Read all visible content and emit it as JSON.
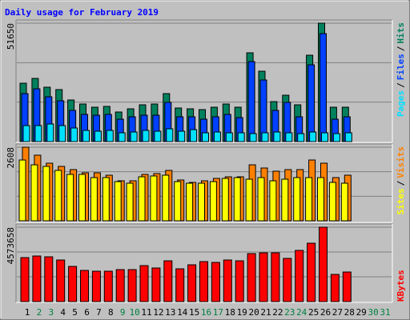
{
  "chart_data": [
    {
      "type": "bar",
      "title": "Daily usage for February 2019",
      "title_color": "#0000ff",
      "ylim": [
        0,
        51650
      ],
      "yticks": [
        51650
      ],
      "legend_separator": "/",
      "series": [
        {
          "name": "Hits",
          "color": "#00805c",
          "values": [
            25476,
            27570,
            23731,
            22684,
            18147,
            16402,
            15006,
            15355,
            12913,
            14309,
            16053,
            16402,
            20939,
            14657,
            14309,
            13959,
            15006,
            16402,
            15006,
            38738,
            30711,
            17449,
            20241,
            16053,
            37691,
            51650,
            15006,
            15006,
            0,
            0,
            0
          ]
        },
        {
          "name": "Files",
          "color": "#0040ff",
          "values": [
            20939,
            23033,
            19543,
            17798,
            13610,
            11866,
            11517,
            11866,
            9772,
            10819,
            11517,
            11517,
            17100,
            10819,
            10819,
            9772,
            10819,
            11866,
            10470,
            34899,
            26872,
            13610,
            17100,
            10819,
            33503,
            47113,
            9772,
            10819,
            0,
            0,
            0
          ]
        },
        {
          "name": "Pages",
          "color": "#00e0ff",
          "values": [
            6980,
            6980,
            7678,
            6980,
            5933,
            4886,
            4537,
            4886,
            3839,
            4188,
            4886,
            4537,
            5584,
            4537,
            5235,
            3839,
            4188,
            3839,
            3839,
            3490,
            3839,
            4188,
            3839,
            3490,
            4188,
            3839,
            3490,
            3839,
            0,
            0,
            0
          ]
        }
      ]
    },
    {
      "type": "bar",
      "ylim": [
        0,
        2608
      ],
      "yticks": [
        2608
      ],
      "legend_separator": "/",
      "series": [
        {
          "name": "Visits",
          "color": "#ff8000",
          "values": [
            2608,
            2325,
            2041,
            1928,
            1814,
            1701,
            1701,
            1616,
            1417,
            1417,
            1644,
            1673,
            1786,
            1446,
            1361,
            1417,
            1502,
            1559,
            1559,
            1984,
            1871,
            1758,
            1814,
            1814,
            2154,
            2041,
            1531,
            1616,
            0,
            0,
            0
          ]
        },
        {
          "name": "Sites",
          "color": "#ffff00",
          "values": [
            2154,
            1984,
            1928,
            1786,
            1644,
            1644,
            1531,
            1531,
            1389,
            1332,
            1559,
            1588,
            1616,
            1389,
            1332,
            1332,
            1389,
            1502,
            1531,
            1474,
            1531,
            1417,
            1474,
            1531,
            1531,
            1531,
            1361,
            1332,
            0,
            0,
            0
          ]
        }
      ]
    },
    {
      "type": "bar",
      "ylim": [
        0,
        4573658
      ],
      "yticks": [
        4573658
      ],
      "categories": [
        "1",
        "2",
        "3",
        "4",
        "5",
        "6",
        "7",
        "8",
        "9",
        "10",
        "11",
        "12",
        "13",
        "14",
        "15",
        "16",
        "17",
        "18",
        "19",
        "20",
        "21",
        "22",
        "23",
        "24",
        "25",
        "26",
        "27",
        "28",
        "29",
        "30",
        "31"
      ],
      "category_colors": [
        "#000000",
        "#008040",
        "#008040",
        "#000000",
        "#000000",
        "#000000",
        "#000000",
        "#000000",
        "#008040",
        "#008040",
        "#000000",
        "#000000",
        "#000000",
        "#000000",
        "#000000",
        "#008040",
        "#008040",
        "#000000",
        "#000000",
        "#000000",
        "#000000",
        "#000000",
        "#008040",
        "#008040",
        "#000000",
        "#000000",
        "#000000",
        "#000000",
        "#000000",
        "#008040",
        "#008040"
      ],
      "series": [
        {
          "name": "KBytes",
          "color": "#ff0000",
          "values": [
            2704766,
            2803121,
            2753943,
            2557233,
            2163813,
            1917926,
            1868749,
            1868749,
            1967104,
            1967104,
            2212991,
            2065459,
            2508055,
            2016281,
            2262168,
            2458848,
            2409671,
            2557233,
            2508055,
            2950653,
            2999831,
            2999831,
            2655588,
            3147363,
            3589923,
            4573658,
            1672039,
            1819572,
            0,
            0,
            0
          ]
        }
      ]
    }
  ]
}
